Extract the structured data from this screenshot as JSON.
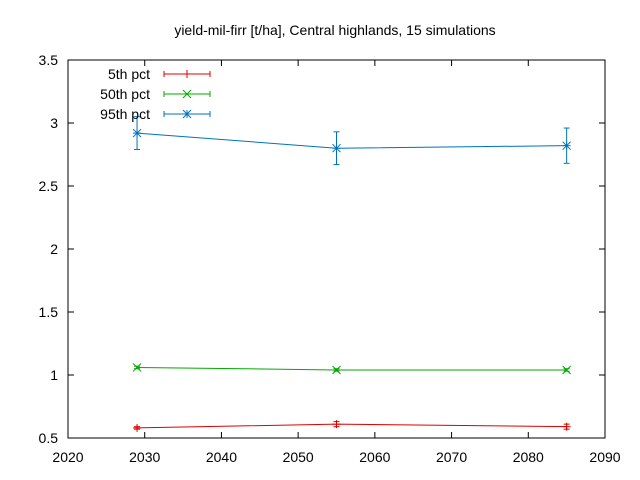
{
  "chart_data": {
    "type": "line",
    "title": "yield-mil-firr [t/ha], Central highlands, 15 simulations",
    "xlabel": "",
    "ylabel": "",
    "xlim": [
      2020,
      2090
    ],
    "ylim": [
      0.5,
      3.5
    ],
    "x_ticks": [
      2020,
      2030,
      2040,
      2050,
      2060,
      2070,
      2080,
      2090
    ],
    "y_ticks": [
      "0.5",
      "1",
      "1.5",
      "2",
      "2.5",
      "3",
      "3.5"
    ],
    "legend_position": "top-left",
    "grid": false,
    "series": [
      {
        "name": "5th pct",
        "color": "#dd0000",
        "marker": "plus",
        "x": [
          2029,
          2055,
          2085
        ],
        "y": [
          0.58,
          0.61,
          0.59
        ],
        "err": [
          0.01,
          0.02,
          0.02
        ]
      },
      {
        "name": "50th pct",
        "color": "#00aa00",
        "marker": "cross",
        "x": [
          2029,
          2055,
          2085
        ],
        "y": [
          1.06,
          1.04,
          1.04
        ],
        "err": [
          0.01,
          0.01,
          0.01
        ]
      },
      {
        "name": "95th pct",
        "color": "#0072bd",
        "marker": "star",
        "x": [
          2029,
          2055,
          2085
        ],
        "y": [
          2.92,
          2.8,
          2.82
        ],
        "err": [
          0.13,
          0.13,
          0.14
        ]
      }
    ]
  }
}
